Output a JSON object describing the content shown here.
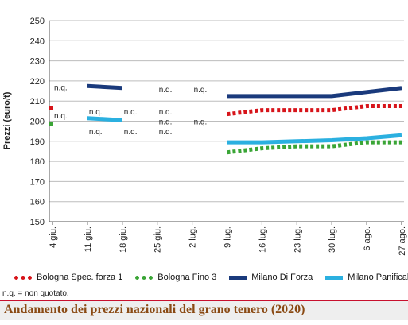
{
  "chart_data": {
    "type": "line",
    "title": "Andamento dei prezzi nazionali del grano tenero (2020)",
    "ylabel": "Prezzi (euro/t)",
    "xlabel": "",
    "ylim": [
      150,
      250
    ],
    "yticks": [
      150,
      160,
      170,
      180,
      190,
      200,
      210,
      220,
      230,
      240,
      250
    ],
    "categories": [
      "4 giu.",
      "11 giu.",
      "18 giu.",
      "25 giu.",
      "2 lug.",
      "9 lug.",
      "16 lug.",
      "23 lug.",
      "30 lug.",
      "6 ago.",
      "27 ago."
    ],
    "grid": "horizontal",
    "legend_position": "bottom",
    "series": [
      {
        "name": "Bologna Spec. forza 1",
        "color": "#d7141a",
        "style": "dotted",
        "values": [
          206.5,
          null,
          null,
          null,
          null,
          203.5,
          205.5,
          205.5,
          205.5,
          207.5,
          207.5
        ]
      },
      {
        "name": "Bologna Fino 3",
        "color": "#3aa536",
        "style": "dotted",
        "values": [
          198.5,
          null,
          null,
          null,
          null,
          184.5,
          186.5,
          187.5,
          187.5,
          189.5,
          189.5
        ]
      },
      {
        "name": "Milano Di Forza",
        "color": "#1a3a7c",
        "style": "solid",
        "values": [
          null,
          217.5,
          216.5,
          null,
          null,
          212.5,
          212.5,
          212.5,
          212.5,
          214.5,
          216.5
        ]
      },
      {
        "name": "Milano Panificabile",
        "color": "#2bb0e0",
        "style": "solid",
        "values": [
          null,
          201.5,
          200.5,
          null,
          null,
          189.5,
          189.5,
          190.0,
          190.5,
          191.5,
          193.0
        ]
      }
    ],
    "annotations": [
      {
        "text": "n.q.",
        "x": "4 giu.",
        "y": 217
      },
      {
        "text": "n.q.",
        "x": "4 giu.",
        "y": 203
      },
      {
        "text": "n.q.",
        "x": "11 giu.",
        "y": 205
      },
      {
        "text": "n.q.",
        "x": "11 giu.",
        "y": 195
      },
      {
        "text": "n.q.",
        "x": "18 giu.",
        "y": 205
      },
      {
        "text": "n.q.",
        "x": "18 giu.",
        "y": 195
      },
      {
        "text": "n.q.",
        "x": "25 giu.",
        "y": 216
      },
      {
        "text": "n.q.",
        "x": "25 giu.",
        "y": 205
      },
      {
        "text": "n.q.",
        "x": "25 giu.",
        "y": 200
      },
      {
        "text": "n.q.",
        "x": "25 giu.",
        "y": 195
      },
      {
        "text": "n.q.",
        "x": "2 lug.",
        "y": 216
      },
      {
        "text": "n.q.",
        "x": "2 lug.",
        "y": 200
      }
    ]
  },
  "note": "n.q. = non quotato."
}
